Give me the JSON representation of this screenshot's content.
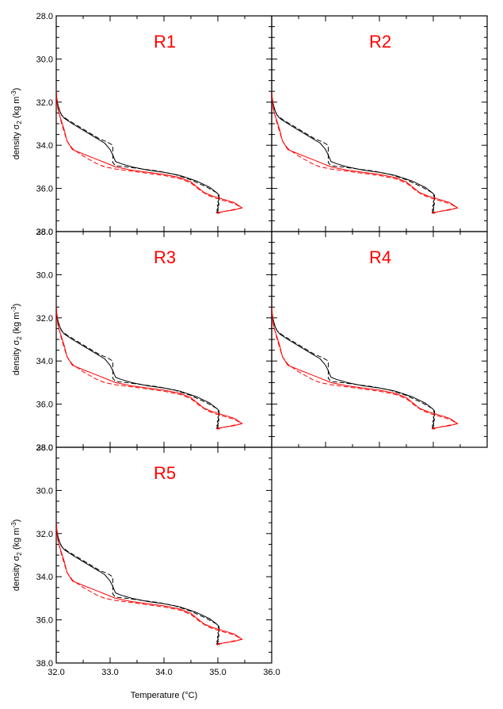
{
  "chart_data": {
    "type": "line",
    "xlabel": "Temperature (°C)",
    "ylabel": "density σ",
    "ylabel_sub": "2",
    "ylabel_unit": "(kg m",
    "ylabel_unit_sup": "-3",
    "ylabel_unit_close": ")",
    "xlim": [
      32.0,
      36.0
    ],
    "ylim": [
      38.0,
      28.0
    ],
    "x_ticks": [
      "32.0",
      "33.0",
      "34.0",
      "35.0",
      "36.0"
    ],
    "y_ticks": [
      "28.0",
      "30.0",
      "32.0",
      "34.0",
      "36.0",
      "38.0"
    ],
    "title_color": "#ff0000",
    "panels": [
      {
        "title": "R1"
      },
      {
        "title": "R2"
      },
      {
        "title": "R3"
      },
      {
        "title": "R4"
      },
      {
        "title": "R5"
      }
    ],
    "series": [
      {
        "color": "#000000",
        "dash": "solid",
        "x": [
          32.0,
          32.01,
          32.02,
          32.04,
          32.07,
          32.1,
          32.15,
          32.3,
          32.5,
          32.7,
          32.9,
          33.0,
          33.05,
          33.1,
          33.2,
          33.4,
          33.7,
          34.0,
          34.3,
          34.6,
          34.85,
          34.98,
          35.02,
          35.03,
          35.0,
          35.02,
          34.99,
          35.01,
          34.98,
          35.0,
          34.98,
          35.0
        ],
        "y": [
          31.5,
          31.8,
          32.0,
          32.2,
          32.45,
          32.6,
          32.75,
          33.0,
          33.3,
          33.6,
          33.9,
          34.2,
          34.45,
          34.75,
          34.85,
          35.0,
          35.15,
          35.25,
          35.4,
          35.65,
          35.95,
          36.2,
          36.3,
          36.5,
          36.6,
          36.7,
          36.8,
          36.9,
          37.0,
          37.05,
          37.12,
          37.15
        ]
      },
      {
        "color": "#000000",
        "dash": "dashed",
        "x": [
          32.0,
          32.01,
          32.02,
          32.05,
          32.1,
          32.2,
          32.4,
          32.6,
          32.8,
          32.95,
          33.05,
          33.05,
          33.1,
          33.3,
          33.6,
          33.9,
          34.2,
          34.5,
          34.8,
          34.98,
          35.02,
          35.0,
          35.02,
          34.99,
          35.01,
          34.98,
          35.0
        ],
        "y": [
          31.5,
          31.8,
          32.0,
          32.3,
          32.6,
          32.8,
          33.1,
          33.4,
          33.7,
          33.85,
          34.0,
          34.8,
          34.95,
          35.0,
          35.1,
          35.2,
          35.35,
          35.6,
          35.95,
          36.2,
          36.4,
          36.6,
          36.75,
          36.9,
          37.0,
          37.1,
          37.15
        ]
      },
      {
        "color": "#ff0000",
        "dash": "solid",
        "x": [
          32.0,
          32.01,
          32.03,
          32.06,
          32.1,
          32.15,
          32.2,
          32.3,
          32.5,
          32.8,
          33.1,
          33.4,
          33.7,
          34.0,
          34.3,
          34.5,
          34.65,
          34.75,
          34.9,
          35.1,
          35.3,
          35.45,
          35.3,
          35.15,
          35.05,
          35.0,
          35.03,
          34.98
        ],
        "y": [
          31.5,
          31.9,
          32.3,
          32.6,
          32.9,
          33.3,
          33.8,
          34.2,
          34.4,
          34.7,
          35.0,
          35.15,
          35.25,
          35.35,
          35.5,
          35.7,
          36.0,
          36.2,
          36.35,
          36.5,
          36.65,
          36.9,
          37.0,
          37.05,
          37.1,
          37.1,
          37.15,
          37.15
        ]
      },
      {
        "color": "#ff0000",
        "dash": "dashed",
        "x": [
          32.0,
          32.02,
          32.05,
          32.1,
          32.15,
          32.2,
          32.3,
          32.5,
          32.75,
          32.9,
          33.1,
          33.4,
          33.7,
          34.0,
          34.3,
          34.5,
          34.65,
          34.8,
          34.95,
          35.1,
          35.3,
          35.45,
          35.25,
          35.05,
          34.98
        ],
        "y": [
          31.5,
          32.0,
          32.5,
          33.0,
          33.4,
          33.8,
          34.15,
          34.5,
          34.85,
          35.0,
          35.1,
          35.2,
          35.3,
          35.4,
          35.55,
          35.75,
          36.05,
          36.3,
          36.45,
          36.55,
          36.7,
          36.9,
          37.0,
          37.1,
          37.15
        ]
      }
    ]
  }
}
